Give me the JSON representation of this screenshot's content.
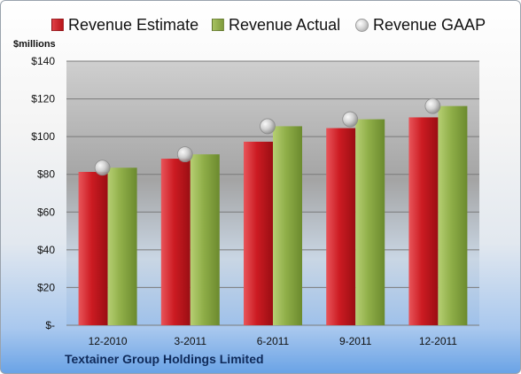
{
  "chart_data": {
    "type": "bar",
    "unit_label": "$millions",
    "categories": [
      "12-2010",
      "3-2011",
      "6-2011",
      "9-2011",
      "12-2011"
    ],
    "series": [
      {
        "name": "Revenue Estimate",
        "type": "bar",
        "color": "#c8161d",
        "values": [
          81.3,
          88.3,
          97.3,
          104.5,
          110.2
        ]
      },
      {
        "name": "Revenue Actual",
        "type": "bar",
        "color": "#8fae48",
        "values": [
          83.5,
          90.6,
          105.5,
          109.2,
          116.2
        ]
      },
      {
        "name": "Revenue GAAP",
        "type": "marker",
        "color": "#b5b5b5",
        "values": [
          83.5,
          90.6,
          105.5,
          109.2,
          116.2
        ]
      }
    ],
    "ylim": [
      0,
      140
    ],
    "yticks": [
      0,
      20,
      40,
      60,
      80,
      100,
      120,
      140
    ],
    "ytick_labels": [
      "$-",
      "$20",
      "$40",
      "$60",
      "$80",
      "$100",
      "$120",
      "$140"
    ],
    "grid": true,
    "legend_position": "top"
  },
  "company_name": "Textainer Group Holdings Limited"
}
